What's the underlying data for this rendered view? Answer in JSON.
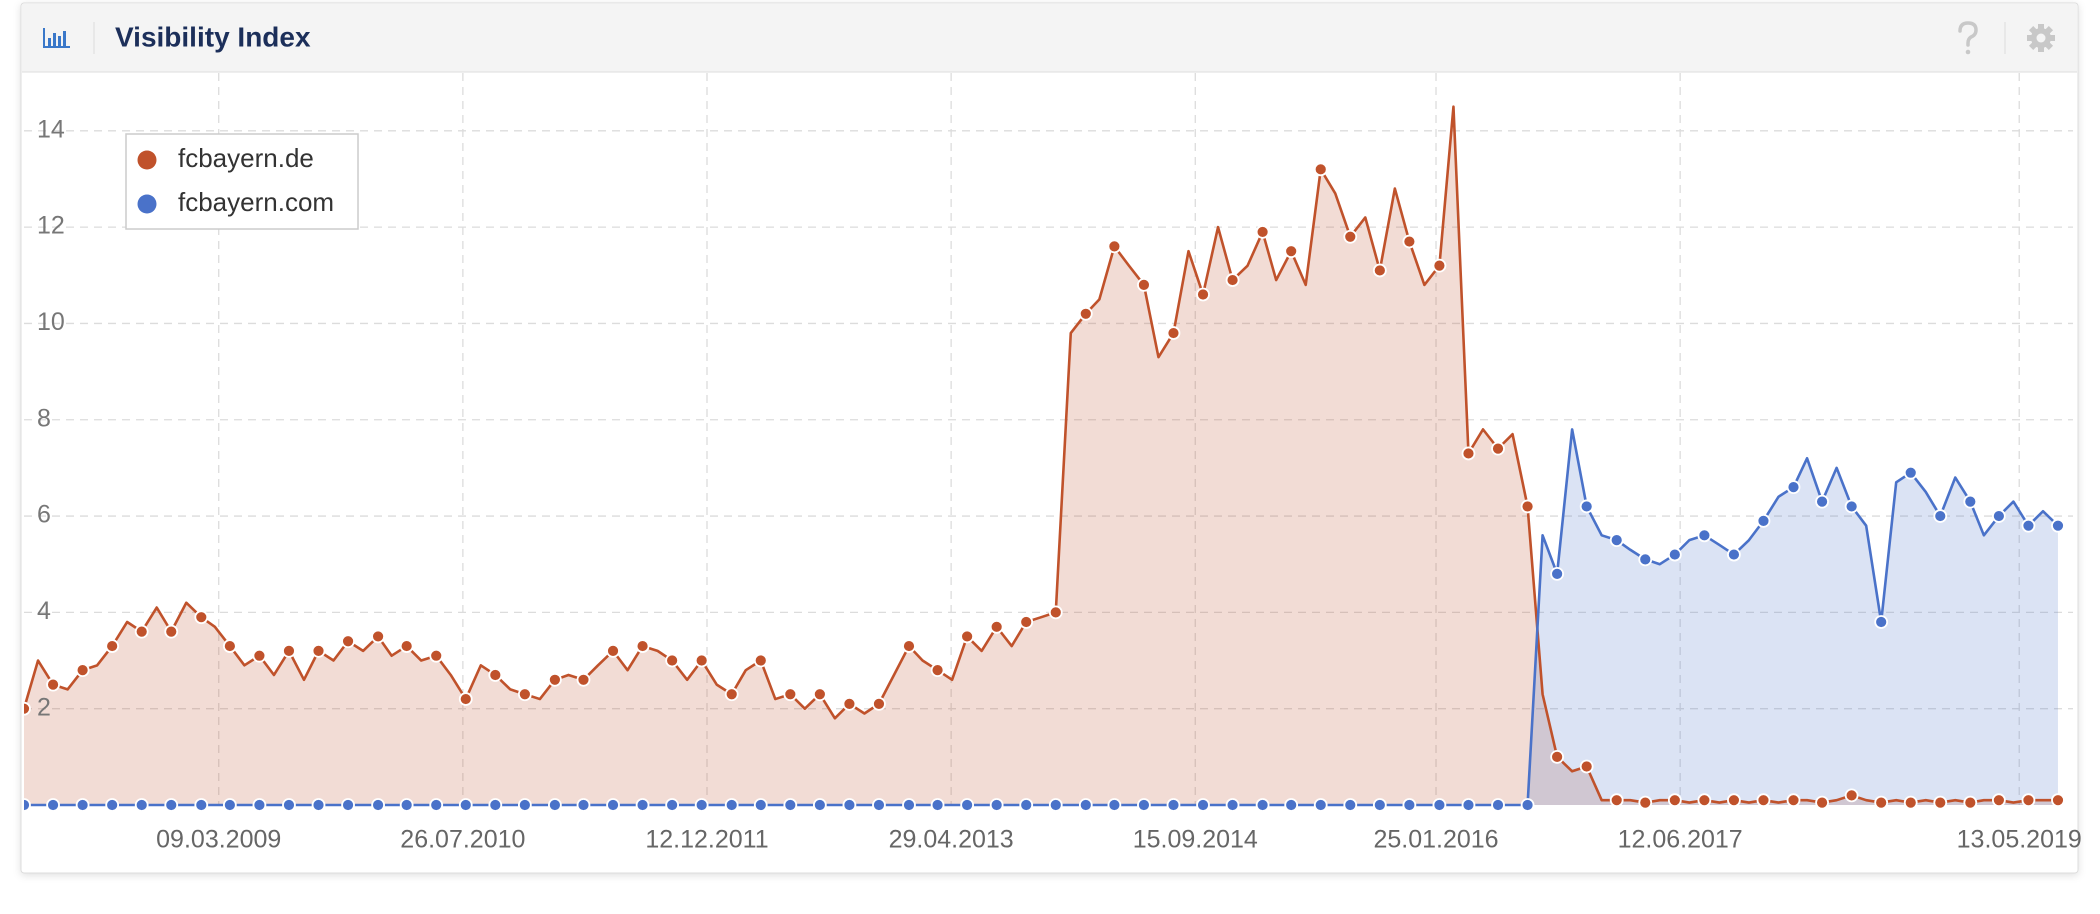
{
  "chart_data": {
    "type": "area-line",
    "title": "Visibility Index",
    "x": [
      "01.02.2008",
      "01.03.2008",
      "01.04.2008",
      "01.05.2008",
      "01.06.2008",
      "01.07.2008",
      "01.08.2008",
      "01.09.2008",
      "01.10.2008",
      "01.11.2008",
      "01.12.2008",
      "01.01.2009",
      "01.02.2009",
      "01.03.2009",
      "01.04.2009",
      "01.05.2009",
      "01.06.2009",
      "01.07.2009",
      "01.08.2009",
      "01.09.2009",
      "01.10.2009",
      "01.11.2009",
      "01.12.2009",
      "01.01.2010",
      "01.02.2010",
      "01.03.2010",
      "01.04.2010",
      "01.05.2010",
      "01.06.2010",
      "01.07.2010",
      "01.08.2010",
      "01.09.2010",
      "01.10.2010",
      "01.11.2010",
      "01.12.2010",
      "01.01.2011",
      "01.02.2011",
      "01.03.2011",
      "01.04.2011",
      "01.05.2011",
      "01.06.2011",
      "01.07.2011",
      "01.08.2011",
      "01.09.2011",
      "01.10.2011",
      "01.11.2011",
      "01.12.2011",
      "01.01.2012",
      "01.02.2012",
      "01.03.2012",
      "01.04.2012",
      "01.05.2012",
      "01.06.2012",
      "01.07.2012",
      "01.08.2012",
      "01.09.2012",
      "01.10.2012",
      "01.11.2012",
      "01.12.2012",
      "01.01.2013",
      "01.02.2013",
      "01.03.2013",
      "01.04.2013",
      "01.05.2013",
      "01.06.2013",
      "01.07.2013",
      "01.08.2013",
      "01.09.2013",
      "01.10.2013",
      "01.11.2013",
      "01.12.2013",
      "01.01.2014",
      "01.02.2014",
      "01.03.2014",
      "01.04.2014",
      "01.05.2014",
      "01.06.2014",
      "01.07.2014",
      "01.08.2014",
      "01.09.2014",
      "01.10.2014",
      "01.11.2014",
      "01.12.2014",
      "01.01.2015",
      "01.02.2015",
      "01.03.2015",
      "01.04.2015",
      "01.05.2015",
      "01.06.2015",
      "01.07.2015",
      "01.08.2015",
      "01.09.2015",
      "01.10.2015",
      "01.11.2015",
      "01.12.2015",
      "01.01.2016",
      "01.02.2016",
      "01.03.2016",
      "01.04.2016",
      "01.05.2016",
      "01.06.2016",
      "01.07.2016",
      "01.08.2016",
      "01.09.2016",
      "01.10.2016",
      "01.11.2016",
      "01.12.2016",
      "01.01.2017",
      "01.02.2017",
      "01.03.2017",
      "01.04.2017",
      "01.05.2017",
      "01.06.2017",
      "01.07.2017",
      "01.08.2017",
      "01.09.2017",
      "01.10.2017",
      "01.11.2017",
      "01.12.2017",
      "01.01.2018",
      "01.02.2018",
      "01.03.2018",
      "01.04.2018",
      "01.05.2018",
      "01.06.2018",
      "01.07.2018",
      "01.08.2018",
      "01.09.2018",
      "01.10.2018",
      "01.11.2018",
      "01.12.2018",
      "01.01.2019",
      "01.02.2019",
      "01.03.2019",
      "01.04.2019",
      "01.05.2019",
      "01.06.2019",
      "01.07.2019",
      "01.08.2019"
    ],
    "series": [
      {
        "name": "fcbayern.de",
        "color": "#c0522b",
        "values": [
          2.0,
          3.0,
          2.5,
          2.4,
          2.8,
          2.9,
          3.3,
          3.8,
          3.6,
          4.1,
          3.6,
          4.2,
          3.9,
          3.7,
          3.3,
          2.9,
          3.1,
          2.7,
          3.2,
          2.6,
          3.2,
          3.0,
          3.4,
          3.2,
          3.5,
          3.1,
          3.3,
          3.0,
          3.1,
          2.7,
          2.2,
          2.9,
          2.7,
          2.4,
          2.3,
          2.2,
          2.6,
          2.7,
          2.6,
          2.9,
          3.2,
          2.8,
          3.3,
          3.2,
          3.0,
          2.6,
          3.0,
          2.5,
          2.3,
          2.8,
          3.0,
          2.2,
          2.3,
          2.0,
          2.3,
          1.8,
          2.1,
          1.9,
          2.1,
          2.7,
          3.3,
          3.0,
          2.8,
          2.6,
          3.5,
          3.2,
          3.7,
          3.3,
          3.8,
          3.9,
          4.0,
          9.8,
          10.2,
          10.5,
          11.6,
          11.2,
          10.8,
          9.3,
          9.8,
          11.5,
          10.6,
          12.0,
          10.9,
          11.2,
          11.9,
          10.9,
          11.5,
          10.8,
          13.2,
          12.7,
          11.8,
          12.2,
          11.1,
          12.8,
          11.7,
          10.8,
          11.2,
          14.5,
          7.3,
          7.8,
          7.4,
          7.7,
          6.2,
          2.3,
          1.0,
          0.7,
          0.8,
          0.1,
          0.1,
          0.1,
          0.05,
          0.1,
          0.1,
          0.05,
          0.1,
          0.05,
          0.1,
          0.05,
          0.1,
          0.05,
          0.1,
          0.1,
          0.05,
          0.1,
          0.2,
          0.1,
          0.05,
          0.1,
          0.05,
          0.1,
          0.05,
          0.1,
          0.05,
          0.1,
          0.1,
          0.05,
          0.1,
          0.1,
          0.1
        ]
      },
      {
        "name": "fcbayern.com",
        "color": "#4a72c9",
        "values": [
          0,
          0,
          0,
          0,
          0,
          0,
          0,
          0,
          0,
          0,
          0,
          0,
          0,
          0,
          0,
          0,
          0,
          0,
          0,
          0,
          0,
          0,
          0,
          0,
          0,
          0,
          0,
          0,
          0,
          0,
          0,
          0,
          0,
          0,
          0,
          0,
          0,
          0,
          0,
          0,
          0,
          0,
          0,
          0,
          0,
          0,
          0,
          0,
          0,
          0,
          0,
          0,
          0,
          0,
          0,
          0,
          0,
          0,
          0,
          0,
          0,
          0,
          0,
          0,
          0,
          0,
          0,
          0,
          0,
          0,
          0,
          0,
          0,
          0,
          0,
          0,
          0,
          0,
          0,
          0,
          0,
          0,
          0,
          0,
          0,
          0,
          0,
          0,
          0,
          0,
          0,
          0,
          0,
          0,
          0,
          0,
          0,
          0,
          0,
          0,
          0,
          0,
          0,
          5.6,
          4.8,
          7.8,
          6.2,
          5.6,
          5.5,
          5.3,
          5.1,
          5.0,
          5.2,
          5.5,
          5.6,
          5.4,
          5.2,
          5.5,
          5.9,
          6.4,
          6.6,
          7.2,
          6.3,
          7.0,
          6.2,
          5.8,
          3.8,
          6.7,
          6.9,
          6.5,
          6.0,
          6.8,
          6.3,
          5.6,
          6.0,
          6.3,
          5.8,
          6.1,
          5.8
        ]
      }
    ],
    "xlim": [
      "01.02.2008",
      "01.09.2019"
    ],
    "xticks": [
      "09.03.2009",
      "26.07.2010",
      "12.12.2011",
      "29.04.2013",
      "15.09.2014",
      "25.01.2016",
      "12.06.2017",
      "13.05.2019"
    ],
    "ylim": [
      0,
      15.2
    ],
    "yticks": [
      2,
      4,
      6,
      8,
      10,
      12,
      14
    ],
    "grid": true,
    "legend": "top-left"
  }
}
